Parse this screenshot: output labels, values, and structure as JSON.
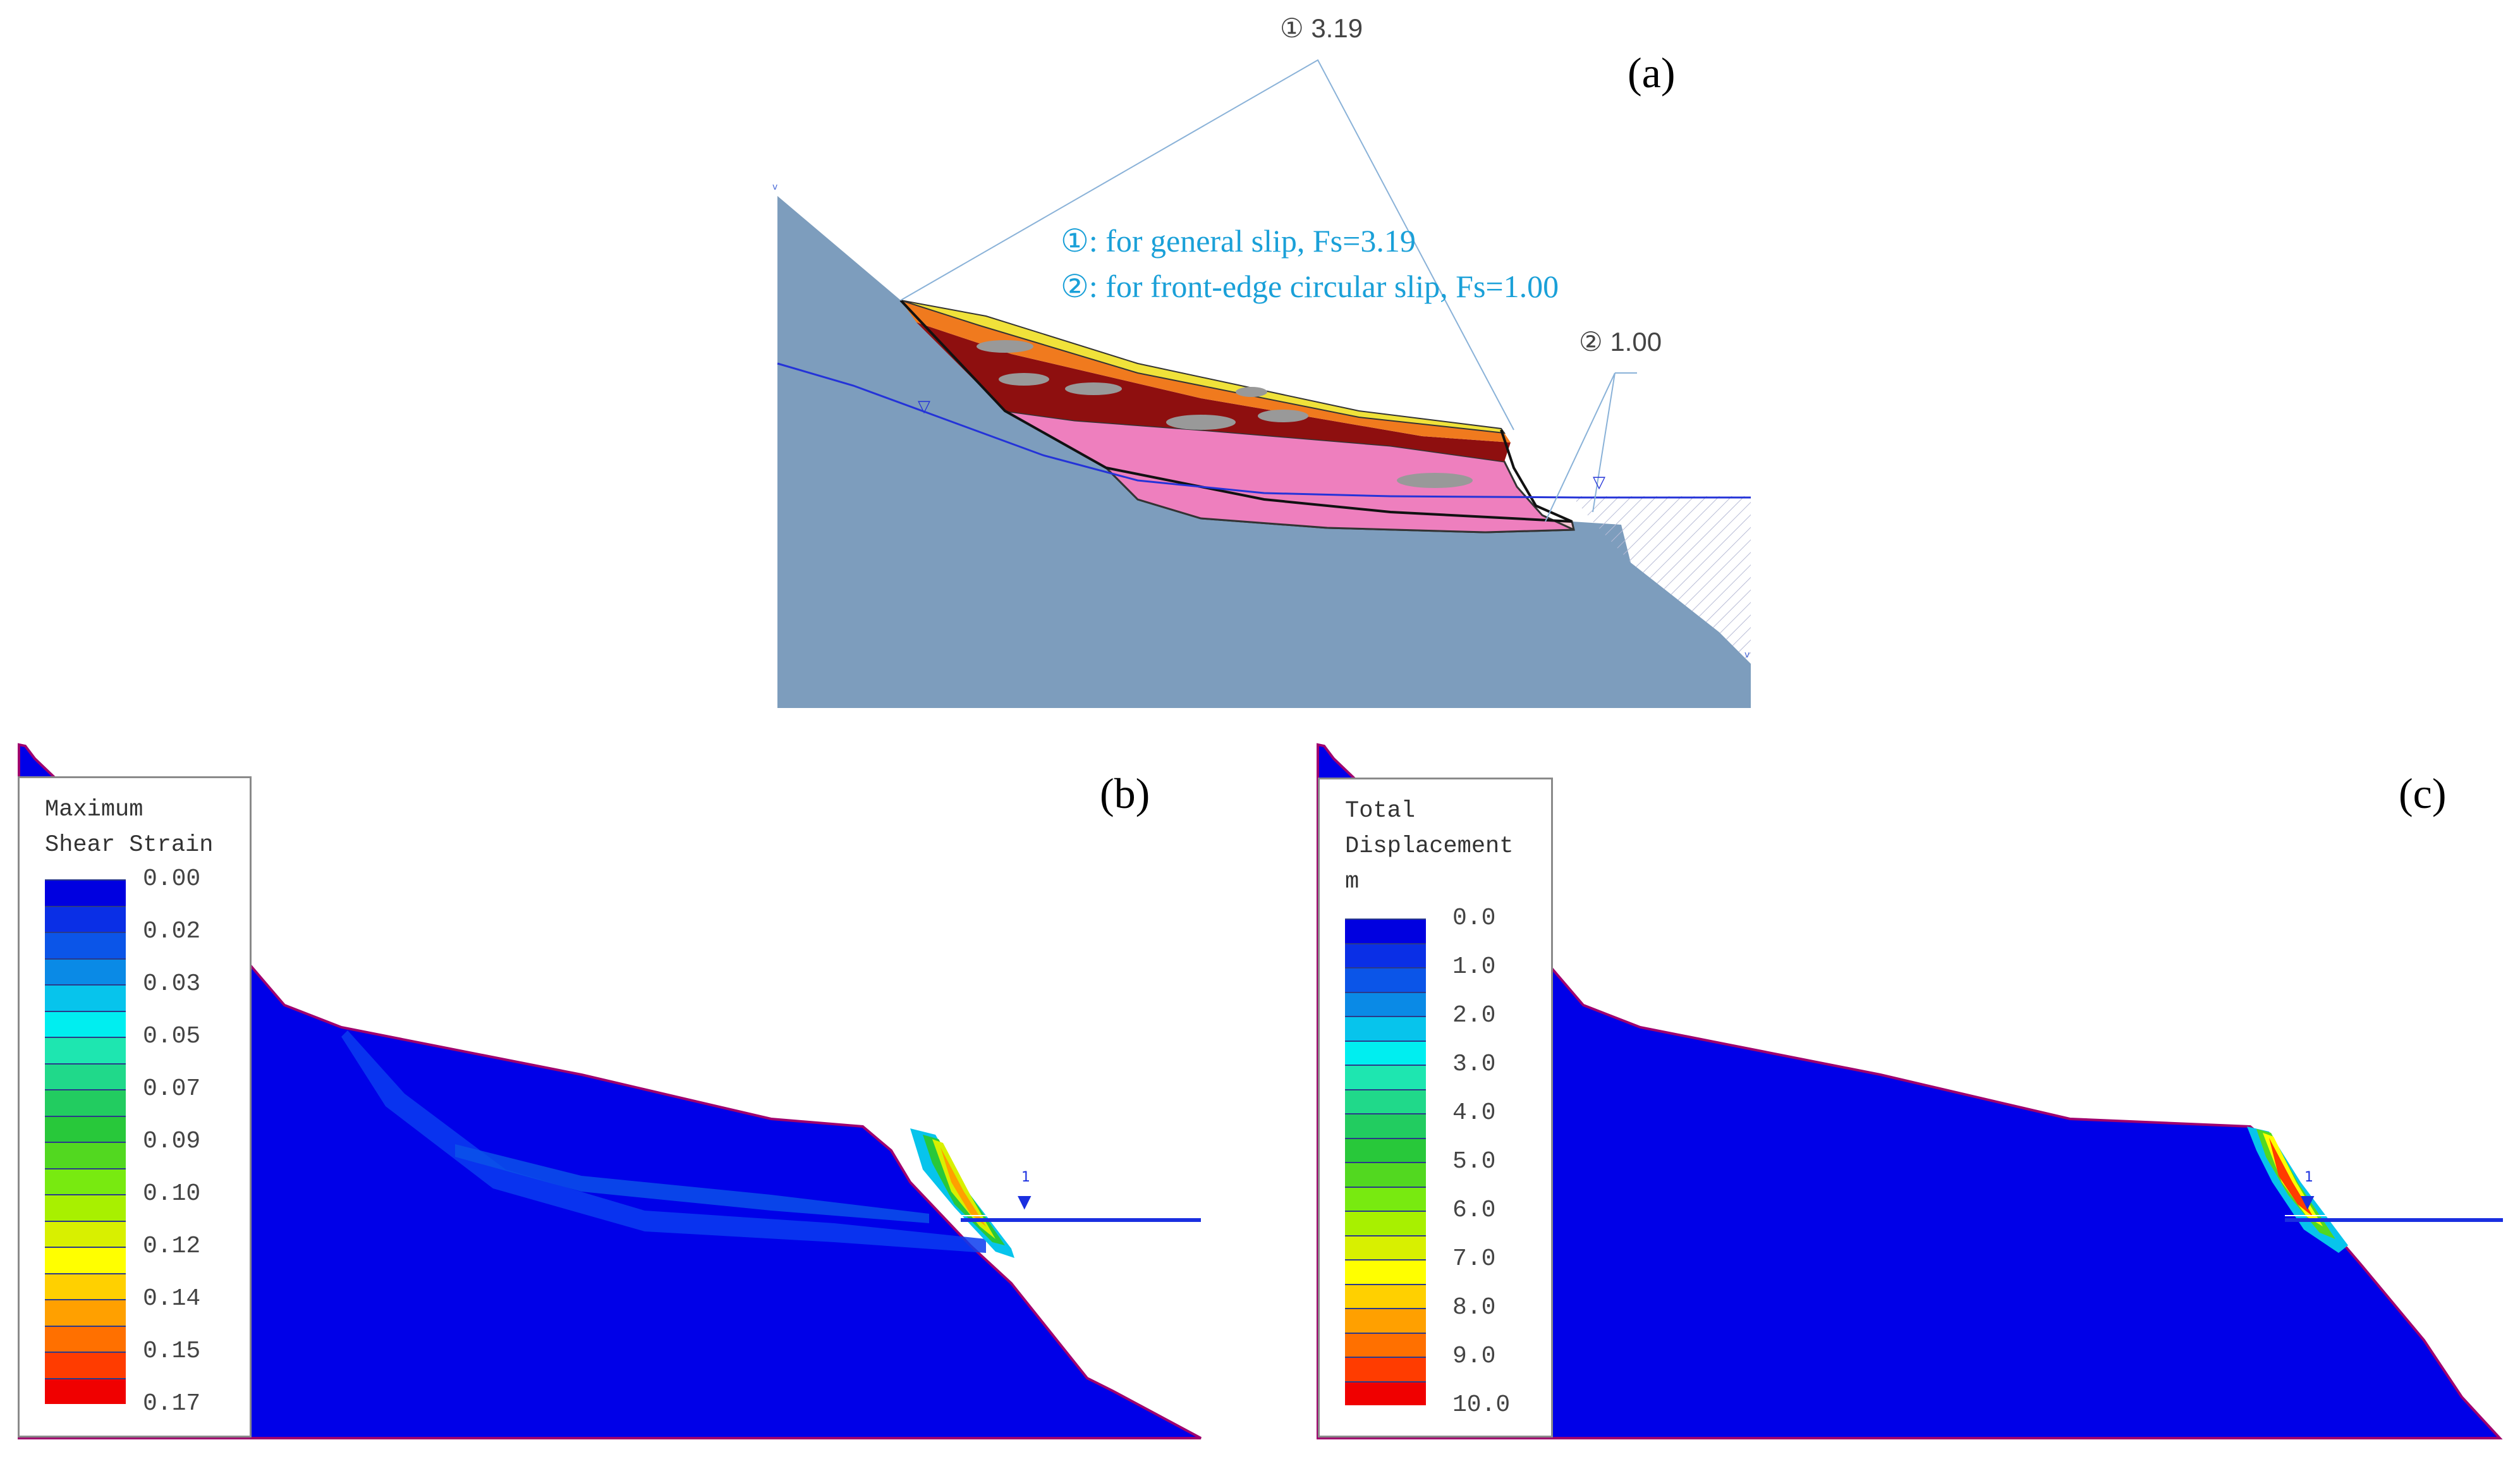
{
  "panel_a": {
    "tag": "(a)",
    "callout_1": "① 3.19",
    "callout_2": "② 1.00",
    "note_line_1": "①: for general slip, Fs=3.19",
    "note_line_2": "②: for front-edge circular slip, Fs=1.00",
    "water_marker": "▽",
    "colors": {
      "bedrock": "#7d9dbd",
      "water_text": "#1aa0d8",
      "layer_yellow": "#f0e23a",
      "layer_orange": "#f07a1e",
      "layer_darkred": "#8e0f0f",
      "layer_pink": "#ee7fbe",
      "layer_lightpink": "#f7c7d3",
      "water_line": "#2433d8"
    }
  },
  "panel_b": {
    "tag": "(b)",
    "legend_title_1": "Maximum",
    "legend_title_2": "Shear Strain",
    "legend_values": [
      "0.00",
      "0.02",
      "0.03",
      "0.05",
      "0.07",
      "0.09",
      "0.10",
      "0.12",
      "0.14",
      "0.15",
      "0.17"
    ],
    "water_marker": "1"
  },
  "panel_c": {
    "tag": "(c)",
    "legend_title_1": "Total",
    "legend_title_2": "Displacement",
    "legend_title_3": "m",
    "legend_values": [
      "0.0",
      "1.0",
      "2.0",
      "3.0",
      "4.0",
      "5.0",
      "6.0",
      "7.0",
      "8.0",
      "9.0",
      "10.0"
    ],
    "water_marker": "1"
  },
  "colorscale": [
    "#0000e0",
    "#0a2fe6",
    "#0b55e8",
    "#0a8ae6",
    "#07c4ec",
    "#00eef0",
    "#1ee6b0",
    "#20d98a",
    "#22cc60",
    "#28c83a",
    "#52d820",
    "#78ea10",
    "#a8f000",
    "#d8f000",
    "#ffff00",
    "#ffd000",
    "#ffa000",
    "#ff7000",
    "#ff3c00",
    "#f00000"
  ]
}
